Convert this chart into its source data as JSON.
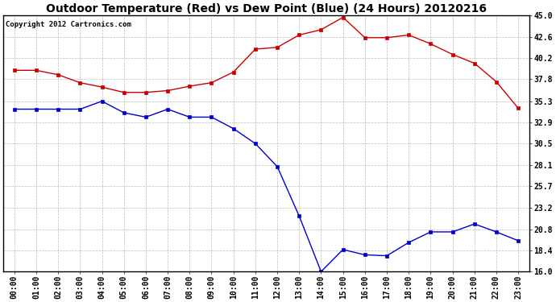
{
  "title": "Outdoor Temperature (Red) vs Dew Point (Blue) (24 Hours) 20120216",
  "copyright_text": "Copyright 2012 Cartronics.com",
  "x_labels": [
    "00:00",
    "01:00",
    "02:00",
    "03:00",
    "04:00",
    "05:00",
    "06:00",
    "07:00",
    "08:00",
    "09:00",
    "10:00",
    "11:00",
    "12:00",
    "13:00",
    "14:00",
    "15:00",
    "16:00",
    "17:00",
    "18:00",
    "19:00",
    "20:00",
    "21:00",
    "22:00",
    "23:00"
  ],
  "temp_red": [
    38.8,
    38.8,
    38.3,
    37.4,
    36.9,
    36.3,
    36.3,
    36.5,
    37.0,
    37.4,
    38.6,
    41.2,
    41.4,
    42.8,
    43.4,
    44.8,
    42.5,
    42.5,
    42.8,
    41.8,
    40.6,
    39.6,
    37.5,
    34.5
  ],
  "dew_blue": [
    34.4,
    34.4,
    34.4,
    34.4,
    35.3,
    34.0,
    33.5,
    34.4,
    33.5,
    33.5,
    32.2,
    30.5,
    27.9,
    22.3,
    16.0,
    18.5,
    17.9,
    17.8,
    19.3,
    20.5,
    20.5,
    21.4,
    20.5,
    19.5
  ],
  "y_ticks": [
    16.0,
    18.4,
    20.8,
    23.2,
    25.7,
    28.1,
    30.5,
    32.9,
    35.3,
    37.8,
    40.2,
    42.6,
    45.0
  ],
  "y_min": 16.0,
  "y_max": 45.0,
  "bg_color": "#ffffff",
  "plot_bg": "#ffffff",
  "red_color": "#cc0000",
  "blue_color": "#0000cc",
  "grid_color": "#aaaaaa",
  "title_fontsize": 10,
  "copyright_fontsize": 6.5,
  "tick_fontsize": 7,
  "marker_size": 3
}
